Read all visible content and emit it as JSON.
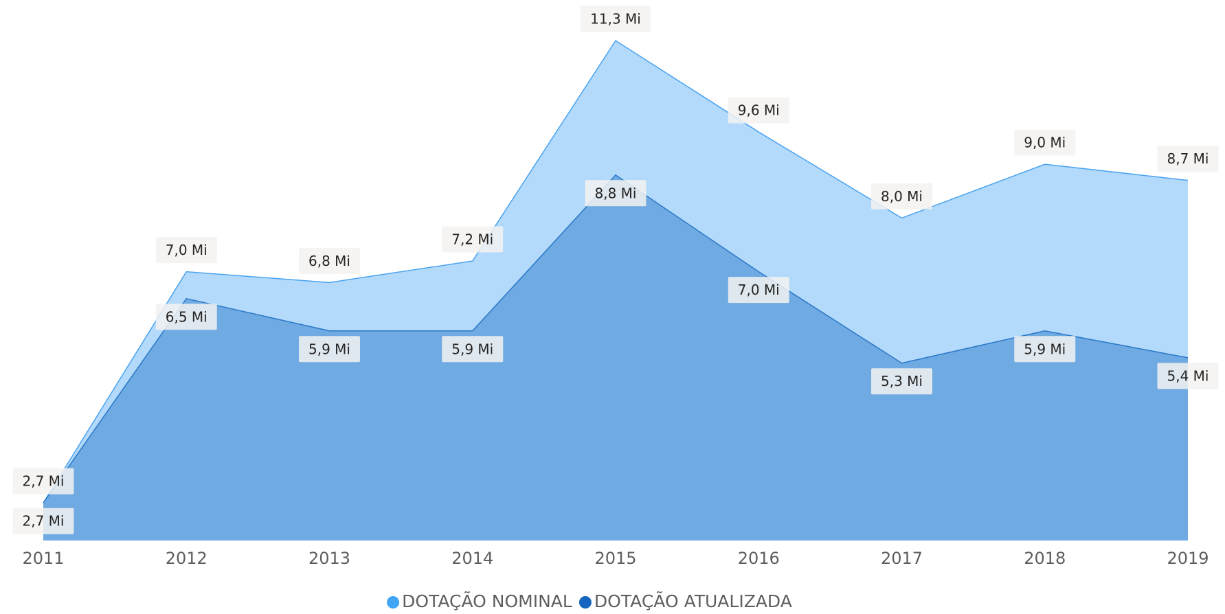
{
  "chart_data": {
    "type": "area",
    "categories": [
      "2011",
      "2012",
      "2013",
      "2014",
      "2015",
      "2016",
      "2017",
      "2018",
      "2019"
    ],
    "ylim": [
      2,
      11.8
    ],
    "series": [
      {
        "name": "DOTAÇÃO NOMINAL",
        "color": "#41a5f5",
        "fill": "#b3d9fb",
        "line": "#4aa3ef",
        "values": [
          2.7,
          7.0,
          6.8,
          7.2,
          11.3,
          9.6,
          8.0,
          9.0,
          8.7
        ],
        "value_labels": [
          "2,7 Mi",
          "7,0 Mi",
          "6,8 Mi",
          "7,2 Mi",
          "11,3 Mi",
          "9,6 Mi",
          "8,0 Mi",
          "9,0 Mi",
          "8,7 Mi"
        ]
      },
      {
        "name": "DOTAÇÃO ATUALIZADA",
        "color": "#1565c0",
        "fill": "#6faae2",
        "line": "#2a78c8",
        "values": [
          2.7,
          6.5,
          5.9,
          5.9,
          8.8,
          7.0,
          5.3,
          5.9,
          5.4
        ],
        "value_labels": [
          "2,7 Mi",
          "6,5 Mi",
          "5,9 Mi",
          "5,9 Mi",
          "8,8 Mi",
          "7,0 Mi",
          "5,3 Mi",
          "5,9 Mi",
          "5,4 Mi"
        ]
      }
    ],
    "legend": "bottom"
  }
}
